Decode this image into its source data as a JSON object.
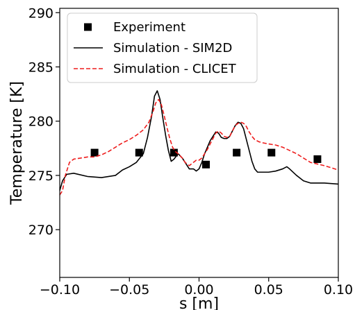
{
  "chart_data": {
    "type": "line",
    "xlabel": "s [m]",
    "ylabel": "Temperature [K]",
    "xlim": [
      -0.1,
      0.1
    ],
    "ylim": [
      265.6,
      290.4
    ],
    "xticks": [
      -0.1,
      -0.05,
      0.0,
      0.05,
      0.1
    ],
    "xtick_labels": [
      "−0.10",
      "−0.05",
      "0.00",
      "0.05",
      "0.10"
    ],
    "yticks": [
      270,
      275,
      280,
      285,
      290
    ],
    "ytick_labels": [
      "270",
      "275",
      "280",
      "285",
      "290"
    ],
    "grid": false,
    "legend_position": "top-left",
    "series": [
      {
        "name": "Experiment",
        "kind": "scatter",
        "marker": "square",
        "color": "#000000",
        "x": [
          -0.075,
          -0.043,
          -0.018,
          0.005,
          0.027,
          0.052,
          0.085
        ],
        "y": [
          277.1,
          277.1,
          277.1,
          276.0,
          277.1,
          277.1,
          276.5
        ]
      },
      {
        "name": "Simulation - SIM2D",
        "kind": "line",
        "style": "solid",
        "color": "#000000",
        "x": [
          -0.1,
          -0.098,
          -0.095,
          -0.09,
          -0.08,
          -0.07,
          -0.06,
          -0.055,
          -0.05,
          -0.045,
          -0.04,
          -0.037,
          -0.034,
          -0.032,
          -0.03,
          -0.028,
          -0.026,
          -0.024,
          -0.022,
          -0.02,
          -0.018,
          -0.015,
          -0.012,
          -0.01,
          -0.007,
          -0.004,
          -0.002,
          0.0,
          0.002,
          0.004,
          0.006,
          0.008,
          0.01,
          0.012,
          0.014,
          0.016,
          0.018,
          0.02,
          0.022,
          0.024,
          0.026,
          0.028,
          0.03,
          0.032,
          0.034,
          0.036,
          0.038,
          0.04,
          0.042,
          0.045,
          0.05,
          0.055,
          0.06,
          0.063,
          0.065,
          0.07,
          0.075,
          0.08,
          0.09,
          0.1
        ],
        "y": [
          273.6,
          274.5,
          275.1,
          275.2,
          274.9,
          274.8,
          275.0,
          275.5,
          275.8,
          276.2,
          277.0,
          278.5,
          280.5,
          282.3,
          282.8,
          282.0,
          280.3,
          278.7,
          277.3,
          276.3,
          276.5,
          277.0,
          276.6,
          276.2,
          275.6,
          275.6,
          275.4,
          275.6,
          276.2,
          277.0,
          277.6,
          278.2,
          278.6,
          279.0,
          278.9,
          278.5,
          278.4,
          278.4,
          278.6,
          279.1,
          279.6,
          279.9,
          279.8,
          279.3,
          278.3,
          277.3,
          276.3,
          275.6,
          275.3,
          275.3,
          275.3,
          275.4,
          275.6,
          275.8,
          275.6,
          275.0,
          274.5,
          274.3,
          274.3,
          274.2
        ]
      },
      {
        "name": "Simulation - CLICET",
        "kind": "line",
        "style": "dashed",
        "color": "#ee1c1c",
        "x": [
          -0.1,
          -0.098,
          -0.096,
          -0.093,
          -0.09,
          -0.085,
          -0.08,
          -0.075,
          -0.07,
          -0.065,
          -0.06,
          -0.055,
          -0.05,
          -0.045,
          -0.04,
          -0.036,
          -0.033,
          -0.031,
          -0.029,
          -0.027,
          -0.025,
          -0.023,
          -0.021,
          -0.019,
          -0.017,
          -0.015,
          -0.012,
          -0.01,
          -0.007,
          -0.004,
          -0.002,
          0.0,
          0.002,
          0.004,
          0.006,
          0.008,
          0.01,
          0.012,
          0.014,
          0.016,
          0.018,
          0.02,
          0.022,
          0.024,
          0.026,
          0.028,
          0.03,
          0.032,
          0.034,
          0.036,
          0.038,
          0.04,
          0.043,
          0.046,
          0.05,
          0.055,
          0.06,
          0.065,
          0.07,
          0.075,
          0.08,
          0.09,
          0.1
        ],
        "y": [
          273.2,
          273.6,
          275.0,
          276.2,
          276.5,
          276.6,
          276.7,
          276.7,
          276.9,
          277.2,
          277.6,
          278.0,
          278.3,
          278.7,
          279.2,
          279.9,
          280.9,
          281.7,
          282.0,
          281.5,
          280.5,
          279.4,
          278.4,
          277.6,
          277.2,
          277.0,
          276.6,
          276.2,
          275.9,
          276.2,
          276.4,
          276.4,
          276.6,
          277.0,
          277.4,
          277.9,
          278.4,
          278.9,
          279.1,
          278.9,
          278.6,
          278.5,
          278.6,
          279.1,
          279.6,
          279.8,
          279.9,
          279.8,
          279.5,
          279.0,
          278.6,
          278.3,
          278.1,
          278.0,
          277.9,
          277.8,
          277.6,
          277.3,
          277.0,
          276.6,
          276.2,
          275.9,
          275.5
        ]
      }
    ]
  }
}
